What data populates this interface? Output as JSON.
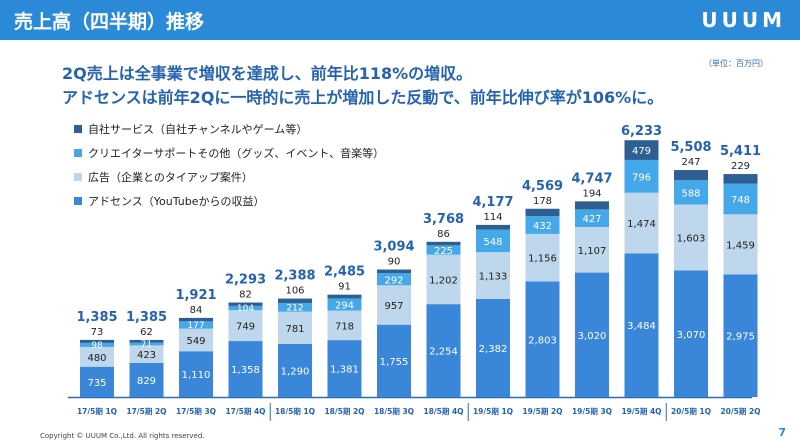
{
  "header": {
    "title": "売上高（四半期）推移",
    "logo": "UUUM"
  },
  "unit_note": "（単位：百万円）",
  "headline": {
    "line1": "2Q売上は全事業で増収を達成し、前年比118%の増収。",
    "line2": "アドセンスは前年2Qに一時的に売上が増加した反動で、前年比伸び率が106%に。"
  },
  "footer": {
    "copyright": "Copyright © UUUM Co.,Ltd. All rights reserved.",
    "page_number": "7"
  },
  "colors": {
    "header": "#2a8ad8",
    "adsense": "#3a86d8",
    "ads": "#bfd7ec",
    "creator": "#45a8e8",
    "own": "#2d5f92"
  },
  "chart_data": {
    "type": "bar",
    "stacked": true,
    "categories": [
      "17/5期 1Q",
      "17/5期 2Q",
      "17/5期 3Q",
      "17/5期 4Q",
      "18/5期 1Q",
      "18/5期 2Q",
      "18/5期 3Q",
      "18/5期 4Q",
      "19/5期 1Q",
      "19/5期 2Q",
      "19/5期 3Q",
      "19/5期 4Q",
      "20/5期 1Q",
      "20/5期 2Q"
    ],
    "series": [
      {
        "name": "アドセンス（YouTubeからの収益）",
        "values": [
          "735",
          "829",
          "1,110",
          "1,358",
          "1,290",
          "1,381",
          "1,755",
          "2,254",
          "2,382",
          "2,803",
          "3,020",
          "3,484",
          "3,070",
          "2,975"
        ]
      },
      {
        "name": "広告（企業とのタイアップ案件）",
        "values": [
          "480",
          "423",
          "549",
          "749",
          "781",
          "718",
          "957",
          "1,202",
          "1,133",
          "1,156",
          "1,107",
          "1,474",
          "1,603",
          "1,459"
        ]
      },
      {
        "name": "クリエイターサポートその他（グッズ、イベント、音楽等）",
        "values": [
          "98",
          "71",
          "177",
          "104",
          "212",
          "294",
          "292",
          "225",
          "548",
          "432",
          "427",
          "796",
          "588",
          "748"
        ]
      },
      {
        "name": "自社サービス（自社チャンネルやゲーム等）",
        "values": [
          "73",
          "62",
          "84",
          "82",
          "106",
          "91",
          "90",
          "86",
          "114",
          "178",
          "194",
          "479",
          "247",
          "229"
        ]
      }
    ],
    "totals": [
      "1,385",
      "1,385",
      "1,921",
      "2,293",
      "2,388",
      "2,485",
      "3,094",
      "3,768",
      "4,177",
      "4,569",
      "4,747",
      "6,233",
      "5,508",
      "5,411"
    ],
    "legend_order": [
      3,
      2,
      1,
      0
    ],
    "legend_position": "top-left"
  }
}
